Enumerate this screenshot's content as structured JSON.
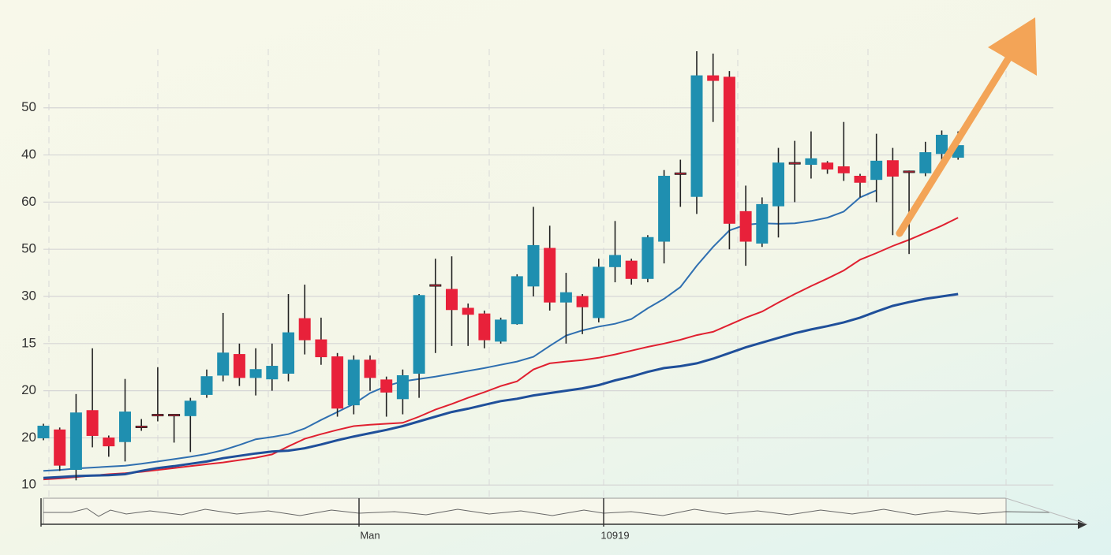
{
  "chart_data": {
    "type": "candlestick",
    "categories": [
      null,
      null,
      null,
      null,
      null,
      null,
      null,
      null,
      null,
      null,
      null,
      null,
      null,
      null,
      null,
      null,
      null,
      null,
      null,
      null,
      "Man",
      null,
      null,
      null,
      null,
      null,
      null,
      null,
      null,
      null,
      null,
      null,
      null,
      null,
      null,
      "10919",
      null,
      null,
      null,
      null,
      null,
      null,
      null,
      null,
      null,
      null,
      null,
      null,
      null,
      null,
      null,
      null,
      null,
      null,
      null,
      null,
      null
    ],
    "open": [
      1.0,
      1.17,
      0.33,
      1.58,
      1.0,
      0.92,
      1.25,
      1.5,
      1.5,
      1.47,
      1.92,
      2.33,
      2.77,
      2.28,
      2.25,
      2.37,
      3.53,
      3.08,
      2.72,
      1.7,
      2.65,
      2.23,
      1.83,
      2.37,
      4.25,
      4.15,
      3.75,
      3.63,
      3.05,
      3.42,
      4.22,
      5.02,
      3.88,
      4.0,
      3.55,
      4.63,
      4.75,
      4.38,
      5.17,
      6.62,
      6.12,
      8.68,
      8.65,
      5.8,
      5.13,
      5.92,
      6.84,
      6.8,
      6.83,
      6.75,
      6.55,
      6.48,
      6.88,
      6.66,
      6.62,
      7.03,
      6.95
    ],
    "high": [
      1.3,
      1.22,
      1.93,
      2.9,
      1.05,
      2.25,
      1.4,
      2.5,
      1.5,
      1.85,
      2.45,
      3.65,
      3.0,
      2.9,
      3.0,
      4.05,
      4.25,
      3.55,
      2.8,
      2.75,
      2.75,
      2.3,
      2.45,
      4.05,
      4.8,
      4.85,
      3.85,
      3.7,
      3.55,
      4.47,
      5.9,
      5.5,
      4.5,
      4.05,
      4.8,
      5.6,
      4.8,
      5.3,
      6.68,
      6.9,
      9.2,
      9.15,
      8.78,
      6.35,
      6.1,
      7.15,
      7.3,
      7.5,
      6.87,
      7.7,
      6.6,
      7.45,
      7.15,
      6.67,
      7.28,
      7.52,
      7.5
    ],
    "low": [
      0.95,
      0.3,
      0.1,
      0.8,
      0.6,
      0.5,
      1.15,
      1.35,
      0.9,
      0.7,
      1.85,
      2.2,
      2.1,
      1.9,
      2.0,
      2.2,
      2.77,
      2.55,
      1.45,
      1.5,
      2.0,
      1.45,
      1.5,
      1.85,
      2.8,
      2.95,
      2.95,
      2.9,
      3.0,
      3.4,
      4.0,
      3.7,
      3.0,
      3.2,
      3.45,
      4.3,
      4.25,
      4.3,
      4.7,
      5.9,
      5.75,
      7.7,
      5.0,
      4.65,
      5.05,
      5.25,
      6.0,
      6.5,
      6.6,
      6.45,
      6.1,
      6.0,
      5.3,
      4.9,
      6.55,
      6.9,
      6.9
    ],
    "close": [
      1.25,
      0.42,
      1.53,
      1.05,
      0.83,
      1.55,
      1.23,
      1.48,
      1.47,
      1.78,
      2.3,
      2.8,
      2.28,
      2.45,
      2.52,
      3.23,
      3.08,
      2.72,
      1.63,
      2.65,
      2.28,
      1.97,
      2.32,
      4.02,
      4.23,
      3.72,
      3.62,
      3.08,
      3.5,
      4.42,
      5.08,
      3.88,
      4.08,
      3.78,
      4.62,
      4.87,
      4.38,
      5.25,
      6.55,
      6.6,
      8.68,
      8.58,
      5.55,
      5.17,
      5.95,
      6.83,
      6.82,
      6.92,
      6.7,
      6.62,
      6.42,
      6.87,
      6.55,
      6.64,
      7.05,
      7.42,
      7.2
    ],
    "up_color": "#1f8fb0",
    "down_color": "#e8213a",
    "lines": [
      {
        "color": "#2f6fb0",
        "values": [
          0.3,
          0.32,
          0.35,
          0.37,
          0.39,
          0.41,
          0.45,
          0.5,
          0.55,
          0.6,
          0.66,
          0.74,
          0.85,
          0.97,
          1.02,
          1.08,
          1.2,
          1.38,
          1.55,
          1.72,
          1.95,
          2.1,
          2.2,
          2.25,
          2.3,
          2.36,
          2.42,
          2.48,
          2.55,
          2.62,
          2.72,
          2.95,
          3.17,
          3.28,
          3.36,
          3.42,
          3.52,
          3.75,
          3.95,
          4.2,
          4.65,
          5.05,
          5.4,
          5.52,
          5.55,
          5.54,
          5.55,
          5.6,
          5.67,
          5.8,
          6.1,
          6.25,
          null,
          null,
          null,
          null,
          null
        ]
      },
      {
        "color": "#e02030",
        "values": [
          0.12,
          0.14,
          0.17,
          0.2,
          0.23,
          0.25,
          0.28,
          0.32,
          0.36,
          0.4,
          0.44,
          0.48,
          0.53,
          0.58,
          0.65,
          0.82,
          0.98,
          1.08,
          1.17,
          1.25,
          1.28,
          1.3,
          1.32,
          1.45,
          1.6,
          1.72,
          1.85,
          1.97,
          2.1,
          2.2,
          2.45,
          2.58,
          2.62,
          2.65,
          2.7,
          2.77,
          2.85,
          2.93,
          3.0,
          3.08,
          3.18,
          3.25,
          3.4,
          3.55,
          3.68,
          3.87,
          4.05,
          4.22,
          4.38,
          4.55,
          4.78,
          4.92,
          5.07,
          5.2,
          5.35,
          5.5,
          5.67
        ]
      },
      {
        "color": "#1f4f9a",
        "values": [
          0.15,
          0.17,
          0.19,
          0.2,
          0.21,
          0.23,
          0.3,
          0.36,
          0.4,
          0.45,
          0.5,
          0.57,
          0.62,
          0.67,
          0.71,
          0.73,
          0.78,
          0.86,
          0.95,
          1.03,
          1.1,
          1.17,
          1.25,
          1.35,
          1.45,
          1.55,
          1.62,
          1.7,
          1.78,
          1.83,
          1.9,
          1.95,
          2.0,
          2.05,
          2.12,
          2.22,
          2.3,
          2.4,
          2.48,
          2.52,
          2.58,
          2.68,
          2.8,
          2.92,
          3.02,
          3.12,
          3.22,
          3.3,
          3.37,
          3.45,
          3.55,
          3.68,
          3.8,
          3.88,
          3.95,
          4.0,
          4.05
        ]
      }
    ],
    "ylim": [
      -0.33,
      9.25
    ],
    "yticks": [
      {
        "value": 0,
        "label": "10"
      },
      {
        "value": 1,
        "label": "20"
      },
      {
        "value": 2,
        "label": "20"
      },
      {
        "value": 3,
        "label": "15"
      },
      {
        "value": 4,
        "label": "30"
      },
      {
        "value": 5,
        "label": "50"
      },
      {
        "value": 6,
        "label": "60"
      },
      {
        "value": 7,
        "label": "40"
      },
      {
        "value": 8,
        "label": "50"
      }
    ],
    "grid": true
  }
}
